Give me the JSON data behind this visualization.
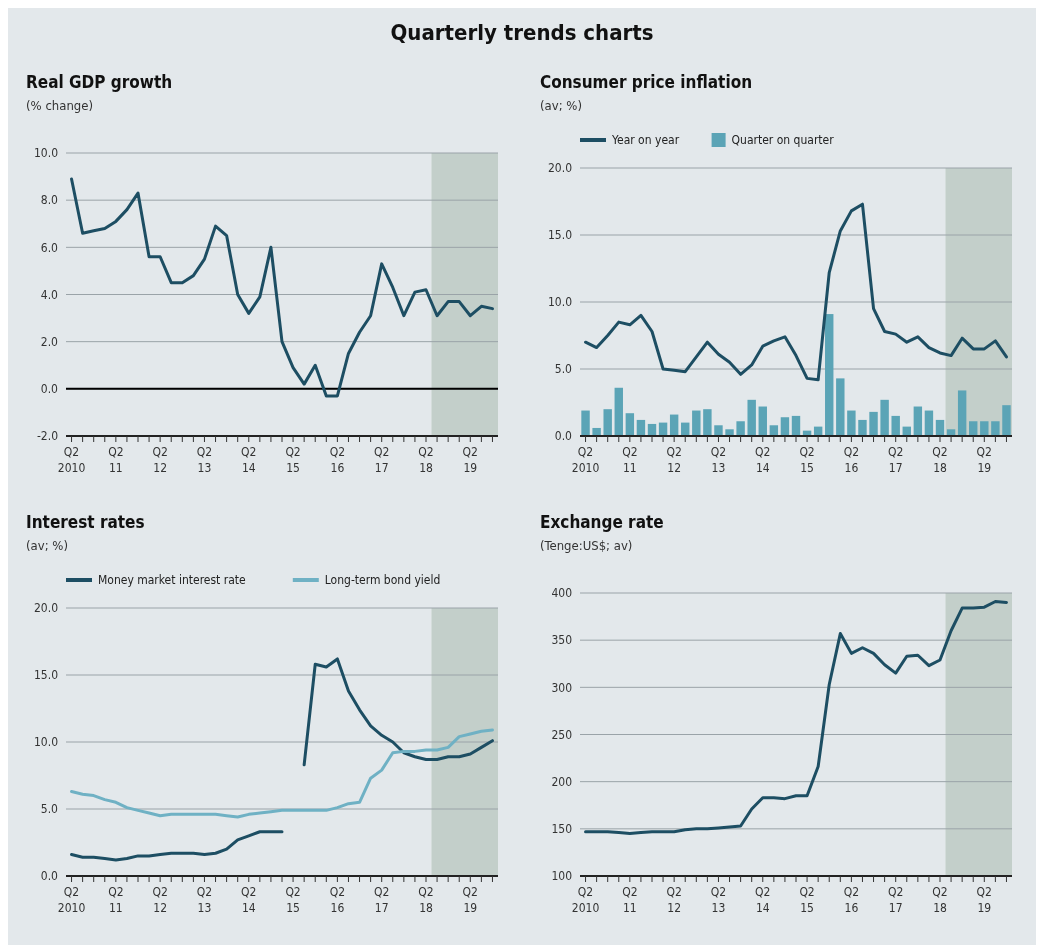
{
  "chart_data": [
    {
      "type": "line",
      "title": "Real GDP growth",
      "subtitle": "(% change)",
      "annotations": [
        "Quarterly trends charts"
      ],
      "grid": "y",
      "legend": false,
      "categories": [
        "Q2 2010",
        null,
        null,
        null,
        "Q2 11",
        null,
        null,
        null,
        "Q2 12",
        null,
        null,
        null,
        "Q2 13",
        null,
        null,
        null,
        "Q2 14",
        null,
        null,
        null,
        "Q2 15",
        null,
        null,
        null,
        "Q2 16",
        null,
        null,
        null,
        "Q2 17",
        null,
        null,
        null,
        "Q2 18",
        null,
        null,
        null,
        "Q2 19",
        null,
        null
      ],
      "ylim": [
        -2,
        10
      ],
      "yticks": [
        {
          "value": -2,
          "label": "-2.0"
        },
        {
          "value": 0,
          "label": "0.0"
        },
        {
          "value": 2,
          "label": "2.0"
        },
        {
          "value": 4,
          "label": "4.0"
        },
        {
          "value": 6,
          "label": "6.0"
        },
        {
          "value": 8,
          "label": "8.0"
        },
        {
          "value": 10,
          "label": "10.0"
        }
      ],
      "ref_lines": [
        {
          "axis": "y",
          "value": 0,
          "color": "#000000"
        }
      ],
      "series": [
        {
          "color": "#1d4e63",
          "values": [
            8.9,
            6.6,
            6.7,
            6.8,
            7.1,
            7.6,
            8.3,
            5.6,
            5.6,
            4.5,
            4.5,
            4.8,
            5.5,
            6.9,
            6.5,
            4.0,
            3.2,
            3.9,
            6.0,
            2.0,
            0.9,
            0.2,
            1.0,
            -0.3,
            -0.3,
            1.5,
            2.4,
            3.1,
            5.3,
            4.3,
            3.1,
            4.1,
            4.2,
            3.1,
            3.7,
            3.7,
            3.1,
            3.5,
            3.4
          ]
        }
      ]
    },
    {
      "type": "bar",
      "title": "Consumer price inflation",
      "subtitle": "(av; %)",
      "grid": "y",
      "legend": "top left",
      "categories": [
        "Q2 2010",
        null,
        null,
        null,
        "Q2 11",
        null,
        null,
        null,
        "Q2 12",
        null,
        null,
        null,
        "Q2 13",
        null,
        null,
        null,
        "Q2 14",
        null,
        null,
        null,
        "Q2 15",
        null,
        null,
        null,
        "Q2 16",
        null,
        null,
        null,
        "Q2 17",
        null,
        null,
        null,
        "Q2 18",
        null,
        null,
        null,
        "Q2 19",
        null,
        null
      ],
      "ylim": [
        0,
        20
      ],
      "yticks": [
        {
          "value": 0,
          "label": "0.0"
        },
        {
          "value": 5,
          "label": "5.0"
        },
        {
          "value": 10,
          "label": "10.0"
        },
        {
          "value": 15,
          "label": "15.0"
        },
        {
          "value": 20,
          "label": "20.0"
        }
      ],
      "series": [
        {
          "name": "Year on year",
          "type": "line",
          "color": "#1d4e63",
          "values": [
            7.0,
            6.6,
            7.5,
            8.5,
            8.3,
            9.0,
            7.8,
            5.0,
            4.9,
            4.8,
            5.9,
            7.0,
            6.1,
            5.5,
            4.6,
            5.3,
            6.7,
            7.1,
            7.4,
            6.0,
            4.3,
            4.2,
            12.2,
            15.3,
            16.8,
            17.3,
            9.5,
            7.8,
            7.6,
            7.0,
            7.4,
            6.6,
            6.2,
            6.0,
            7.3,
            6.5,
            6.5,
            7.1,
            5.9
          ]
        },
        {
          "name": "Quarter on quarter",
          "color": "#5ba4b6",
          "values": [
            1.9,
            0.6,
            2.0,
            3.6,
            1.7,
            1.2,
            0.9,
            1.0,
            1.6,
            1.0,
            1.9,
            2.0,
            0.8,
            0.5,
            1.1,
            2.7,
            2.2,
            0.8,
            1.4,
            1.5,
            0.4,
            0.7,
            9.1,
            4.3,
            1.9,
            1.2,
            1.8,
            2.7,
            1.5,
            0.7,
            2.2,
            1.9,
            1.2,
            0.5,
            3.4,
            1.1,
            1.1,
            1.1,
            2.3
          ]
        }
      ]
    },
    {
      "type": "line",
      "title": "Interest rates",
      "subtitle": "(av; %)",
      "grid": "y",
      "legend": "top left",
      "categories": [
        "Q2 2010",
        null,
        null,
        null,
        "Q2 11",
        null,
        null,
        null,
        "Q2 12",
        null,
        null,
        null,
        "Q2 13",
        null,
        null,
        null,
        "Q2 14",
        null,
        null,
        null,
        "Q2 15",
        null,
        null,
        null,
        "Q2 16",
        null,
        null,
        null,
        "Q2 17",
        null,
        null,
        null,
        "Q2 18",
        null,
        null,
        null,
        "Q2 19",
        null,
        null
      ],
      "ylim": [
        0,
        20
      ],
      "yticks": [
        {
          "value": 0,
          "label": "0.0"
        },
        {
          "value": 5,
          "label": "5.0"
        },
        {
          "value": 10,
          "label": "10.0"
        },
        {
          "value": 15,
          "label": "15.0"
        },
        {
          "value": 20,
          "label": "20.0"
        }
      ],
      "series": [
        {
          "name": "Money market interest rate",
          "color": "#1d4e63",
          "values": [
            1.6,
            1.4,
            1.4,
            1.3,
            1.2,
            1.3,
            1.5,
            1.5,
            1.6,
            1.7,
            1.7,
            1.7,
            1.6,
            1.7,
            2.0,
            2.7,
            3.0,
            3.3,
            3.3,
            3.3,
            null,
            8.3,
            15.8,
            15.6,
            16.2,
            13.8,
            12.4,
            11.2,
            10.5,
            10.0,
            9.2,
            8.9,
            8.7,
            8.7,
            8.9,
            8.9,
            9.1,
            9.6,
            10.1
          ]
        },
        {
          "name": "Long-term bond yield",
          "color": "#6fb1c4",
          "values": [
            6.3,
            6.1,
            6.0,
            5.7,
            5.5,
            5.1,
            4.9,
            4.7,
            4.5,
            4.6,
            4.6,
            4.6,
            4.6,
            4.6,
            4.5,
            4.4,
            4.6,
            4.7,
            4.8,
            4.9,
            4.9,
            4.9,
            4.9,
            4.9,
            5.1,
            5.4,
            5.5,
            7.3,
            7.9,
            9.2,
            9.3,
            9.3,
            9.4,
            9.4,
            9.6,
            10.4,
            10.6,
            10.8,
            10.9
          ]
        }
      ]
    },
    {
      "type": "line",
      "title": "Exchange rate",
      "subtitle": "(Tenge:US$; av)",
      "grid": "y",
      "legend": false,
      "categories": [
        "Q2 2010",
        null,
        null,
        null,
        "Q2 11",
        null,
        null,
        null,
        "Q2 12",
        null,
        null,
        null,
        "Q2 13",
        null,
        null,
        null,
        "Q2 14",
        null,
        null,
        null,
        "Q2 15",
        null,
        null,
        null,
        "Q2 16",
        null,
        null,
        null,
        "Q2 17",
        null,
        null,
        null,
        "Q2 18",
        null,
        null,
        null,
        "Q2 19",
        null,
        null
      ],
      "ylim": [
        100,
        400
      ],
      "yticks": [
        100,
        150,
        200,
        250,
        300,
        350,
        400
      ],
      "series": [
        {
          "color": "#1d4e63",
          "values": [
            147,
            147,
            147,
            146,
            145,
            146,
            147,
            147,
            147,
            149,
            150,
            150,
            151,
            152,
            153,
            171,
            183,
            183,
            182,
            185,
            185,
            216,
            303,
            357,
            336,
            342,
            336,
            324,
            315,
            333,
            334,
            323,
            329,
            360,
            384,
            384,
            385,
            391,
            390
          ]
        }
      ]
    }
  ]
}
